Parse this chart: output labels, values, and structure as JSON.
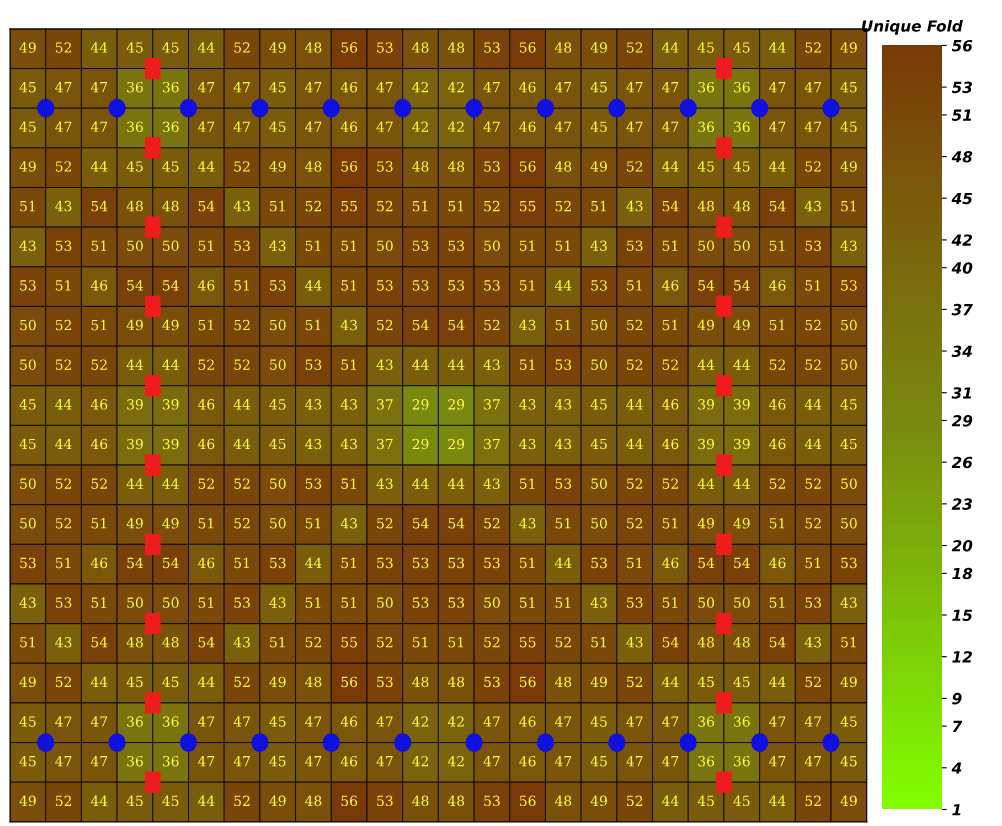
{
  "chart_data": {
    "type": "heatmap",
    "clabel": "Unique Fold",
    "data_labels": true,
    "categories": [
      null,
      null,
      null,
      null,
      null,
      null,
      null,
      null,
      null,
      null,
      null,
      null,
      null,
      null,
      null,
      null,
      null,
      null,
      null,
      null,
      null,
      null,
      null,
      null
    ],
    "y_categories": [
      null,
      null,
      null,
      null,
      null,
      null,
      null,
      null,
      null,
      null,
      null,
      null,
      null,
      null,
      null,
      null,
      null,
      null,
      null,
      null
    ],
    "cells": [
      [
        49,
        52,
        44,
        45,
        45,
        44,
        52,
        49,
        48,
        56,
        53,
        48,
        48,
        53,
        56,
        48,
        49,
        52,
        44,
        45,
        45,
        44,
        52,
        49
      ],
      [
        45,
        47,
        47,
        36,
        36,
        47,
        47,
        45,
        47,
        46,
        47,
        42,
        42,
        47,
        46,
        47,
        45,
        47,
        47,
        36,
        36,
        47,
        47,
        45
      ],
      [
        45,
        47,
        47,
        36,
        36,
        47,
        47,
        45,
        47,
        46,
        47,
        42,
        42,
        47,
        46,
        47,
        45,
        47,
        47,
        36,
        36,
        47,
        47,
        45
      ],
      [
        49,
        52,
        44,
        45,
        45,
        44,
        52,
        49,
        48,
        56,
        53,
        48,
        48,
        53,
        56,
        48,
        49,
        52,
        44,
        45,
        45,
        44,
        52,
        49
      ],
      [
        51,
        43,
        54,
        48,
        48,
        54,
        43,
        51,
        52,
        55,
        52,
        51,
        51,
        52,
        55,
        52,
        51,
        43,
        54,
        48,
        48,
        54,
        43,
        51
      ],
      [
        43,
        53,
        51,
        50,
        50,
        51,
        53,
        43,
        51,
        51,
        50,
        53,
        53,
        50,
        51,
        51,
        43,
        53,
        51,
        50,
        50,
        51,
        53,
        43
      ],
      [
        53,
        51,
        46,
        54,
        54,
        46,
        51,
        53,
        44,
        51,
        53,
        53,
        53,
        53,
        51,
        44,
        53,
        51,
        46,
        54,
        54,
        46,
        51,
        53
      ],
      [
        50,
        52,
        51,
        49,
        49,
        51,
        52,
        50,
        51,
        43,
        52,
        54,
        54,
        52,
        43,
        51,
        50,
        52,
        51,
        49,
        49,
        51,
        52,
        50
      ],
      [
        50,
        52,
        52,
        44,
        44,
        52,
        52,
        50,
        53,
        51,
        43,
        44,
        44,
        43,
        51,
        53,
        50,
        52,
        52,
        44,
        44,
        52,
        52,
        50
      ],
      [
        45,
        44,
        46,
        39,
        39,
        46,
        44,
        45,
        43,
        43,
        37,
        29,
        29,
        37,
        43,
        43,
        45,
        44,
        46,
        39,
        39,
        46,
        44,
        45
      ],
      [
        45,
        44,
        46,
        39,
        39,
        46,
        44,
        45,
        43,
        43,
        37,
        29,
        29,
        37,
        43,
        43,
        45,
        44,
        46,
        39,
        39,
        46,
        44,
        45
      ],
      [
        50,
        52,
        52,
        44,
        44,
        52,
        52,
        50,
        53,
        51,
        43,
        44,
        44,
        43,
        51,
        53,
        50,
        52,
        52,
        44,
        44,
        52,
        52,
        50
      ],
      [
        50,
        52,
        51,
        49,
        49,
        51,
        52,
        50,
        51,
        43,
        52,
        54,
        54,
        52,
        43,
        51,
        50,
        52,
        51,
        49,
        49,
        51,
        52,
        50
      ],
      [
        53,
        51,
        46,
        54,
        54,
        46,
        51,
        53,
        44,
        51,
        53,
        53,
        53,
        53,
        51,
        44,
        53,
        51,
        46,
        54,
        54,
        46,
        51,
        53
      ],
      [
        43,
        53,
        51,
        50,
        50,
        51,
        53,
        43,
        51,
        51,
        50,
        53,
        53,
        50,
        51,
        51,
        43,
        53,
        51,
        50,
        50,
        51,
        53,
        43
      ],
      [
        51,
        43,
        54,
        48,
        48,
        54,
        43,
        51,
        52,
        55,
        52,
        51,
        51,
        52,
        55,
        52,
        51,
        43,
        54,
        48,
        48,
        54,
        43,
        51
      ],
      [
        49,
        52,
        44,
        45,
        45,
        44,
        52,
        49,
        48,
        56,
        53,
        48,
        48,
        53,
        56,
        48,
        49,
        52,
        44,
        45,
        45,
        44,
        52,
        49
      ],
      [
        45,
        47,
        47,
        36,
        36,
        47,
        47,
        45,
        47,
        46,
        47,
        42,
        42,
        47,
        46,
        47,
        45,
        47,
        47,
        36,
        36,
        47,
        47,
        45
      ],
      [
        45,
        47,
        47,
        36,
        36,
        47,
        47,
        45,
        47,
        46,
        47,
        42,
        42,
        47,
        46,
        47,
        45,
        47,
        47,
        36,
        36,
        47,
        47,
        45
      ],
      [
        49,
        52,
        44,
        45,
        45,
        44,
        52,
        49,
        48,
        56,
        53,
        48,
        48,
        53,
        56,
        48,
        49,
        52,
        44,
        45,
        45,
        44,
        52,
        49
      ]
    ],
    "clim": [
      1,
      56
    ],
    "cticks": [
      56,
      53,
      51,
      48,
      45,
      42,
      40,
      37,
      34,
      31,
      29,
      26,
      23,
      20,
      18,
      15,
      12,
      9,
      7,
      4,
      1
    ]
  }
}
